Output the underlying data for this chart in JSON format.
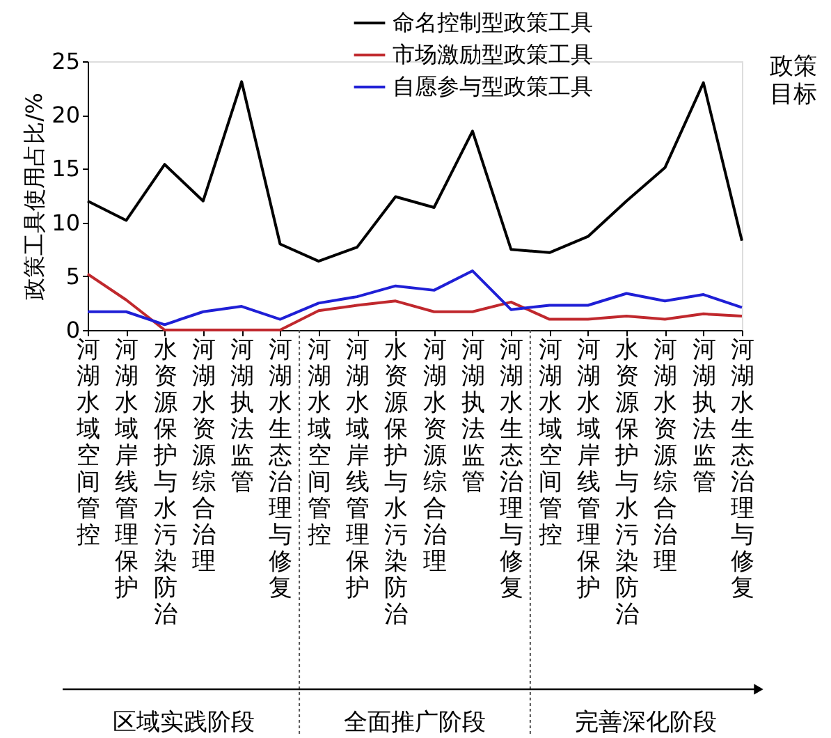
{
  "chart_data": {
    "type": "line",
    "ylabel": "政策工具使用占比/%",
    "xlabel": "政策目标",
    "categories": [
      "河湖水域空间管控",
      "河湖水域岸线管理保护",
      "水资源保护与水污染防治",
      "河湖水资源综合治理",
      "河湖执法监管",
      "河湖水生态治理与修复",
      "河湖水域空间管控",
      "河湖水域岸线管理保护",
      "水资源保护与水污染防治",
      "河湖水资源综合治理",
      "河湖执法监管",
      "河湖水生态治理与修复",
      "河湖水域空间管控",
      "河湖水域岸线管理保护",
      "水资源保护与水污染防治",
      "河湖水资源综合治理",
      "河湖执法监管",
      "河湖水生态治理与修复"
    ],
    "series": [
      {
        "name": "命名控制型政策工具",
        "color": "#000000",
        "values": [
          12.0,
          10.2,
          15.4,
          12.0,
          23.1,
          8.0,
          6.4,
          7.7,
          12.4,
          11.4,
          18.5,
          7.5,
          7.2,
          8.7,
          12.0,
          15.1,
          23.0,
          8.3
        ]
      },
      {
        "name": "市场激励型政策工具",
        "color": "#c0282d",
        "values": [
          5.2,
          2.8,
          0,
          0,
          0,
          0,
          1.8,
          2.3,
          2.7,
          1.7,
          1.7,
          2.6,
          1.0,
          1.0,
          1.3,
          1.0,
          1.5,
          1.3
        ]
      },
      {
        "name": "自愿参与型政策工具",
        "color": "#1f1fd6",
        "values": [
          1.7,
          1.7,
          0.5,
          1.7,
          2.2,
          1.0,
          2.5,
          3.1,
          4.1,
          3.7,
          5.5,
          1.9,
          2.3,
          2.3,
          3.4,
          2.7,
          3.3,
          2.1
        ]
      }
    ],
    "ylim": [
      0,
      25
    ],
    "yticks": [
      0,
      5,
      10,
      15,
      20,
      25
    ],
    "grid": false,
    "legend": "top right",
    "marker": "none",
    "line_style": "solid",
    "annotations": [
      "区域实践阶段",
      "全面推广阶段",
      "完善深化阶段"
    ]
  }
}
